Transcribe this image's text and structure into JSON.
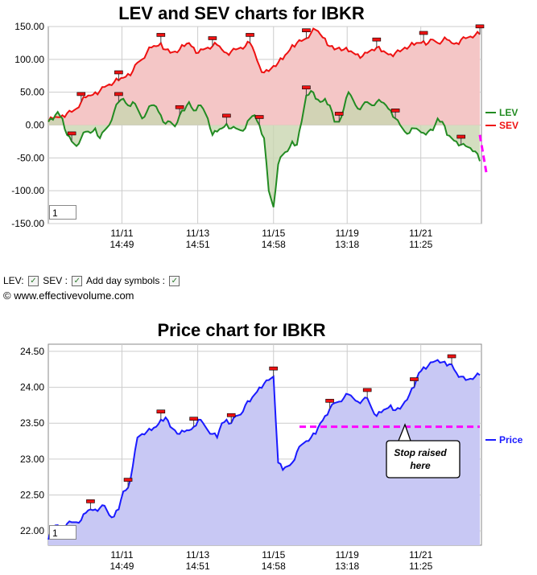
{
  "chart_data": [
    {
      "type": "line",
      "title": "LEV and SEV charts for IBKR",
      "yticks": [
        "150.00",
        "100.00",
        "50.00",
        "0.00",
        "-50.00",
        "-100.00",
        "-150.00"
      ],
      "ylim": [
        -150,
        150
      ],
      "xticks": [
        {
          "date": "11/11",
          "time": "14:49"
        },
        {
          "date": "11/13",
          "time": "14:51"
        },
        {
          "date": "11/15",
          "time": "14:58"
        },
        {
          "date": "11/19",
          "time": "13:18"
        },
        {
          "date": "11/21",
          "time": "11:25"
        }
      ],
      "legend_position": "right",
      "grid": true,
      "zoom_value": "1",
      "colors": {
        "lev": "#228b22",
        "sev": "#ee1111",
        "trend": "#ff00ff"
      },
      "series": [
        {
          "name": "LEV",
          "values": [
            5,
            8,
            20,
            10,
            -15,
            -25,
            -32,
            -20,
            -10,
            -12,
            -5,
            -20,
            -8,
            0,
            20,
            35,
            40,
            30,
            35,
            25,
            10,
            20,
            30,
            28,
            15,
            2,
            5,
            -2,
            15,
            22,
            35,
            22,
            30,
            25,
            10,
            -15,
            -10,
            -5,
            2,
            -5,
            -5,
            -8,
            -5,
            10,
            15,
            0,
            -20,
            -100,
            -125,
            -60,
            -45,
            -40,
            -25,
            -30,
            5,
            45,
            52,
            40,
            35,
            40,
            30,
            5,
            5,
            25,
            50,
            38,
            25,
            30,
            35,
            30,
            35,
            35,
            30,
            22,
            10,
            0,
            -10,
            -12,
            -5,
            -8,
            -12,
            -10,
            -8,
            10,
            5,
            -15,
            -20,
            -25,
            -30,
            -32,
            -35,
            -40,
            -55
          ]
        },
        {
          "name": "SEV",
          "values": [
            5,
            10,
            12,
            15,
            18,
            20,
            25,
            35,
            42,
            45,
            50,
            52,
            58,
            62,
            65,
            68,
            72,
            78,
            82,
            95,
            100,
            110,
            118,
            120,
            125,
            115,
            110,
            112,
            115,
            120,
            125,
            118,
            110,
            115,
            118,
            120,
            122,
            115,
            110,
            112,
            115,
            118,
            120,
            125,
            110,
            90,
            80,
            82,
            90,
            95,
            100,
            110,
            122,
            125,
            128,
            132,
            140,
            145,
            138,
            132,
            120,
            115,
            118,
            115,
            112,
            110,
            108,
            105,
            110,
            115,
            118,
            112,
            110,
            108,
            110,
            112,
            118,
            120,
            122,
            125,
            128,
            125,
            130,
            125,
            128,
            130,
            125,
            125,
            130,
            132,
            135,
            137,
            138
          ]
        }
      ],
      "annotation": {
        "label": "trend-line",
        "x_from": 92,
        "y_from": -15,
        "x_to": 102,
        "y_to": -72
      }
    },
    {
      "type": "area",
      "title": "Price chart for IBKR",
      "yticks": [
        "24.50",
        "24.00",
        "23.50",
        "23.00",
        "22.50",
        "22.00"
      ],
      "ylim": [
        21.8,
        24.6
      ],
      "xticks": [
        {
          "date": "11/11",
          "time": "14:49"
        },
        {
          "date": "11/13",
          "time": "14:51"
        },
        {
          "date": "11/15",
          "time": "14:58"
        },
        {
          "date": "11/19",
          "time": "13:18"
        },
        {
          "date": "11/21",
          "time": "11:25"
        }
      ],
      "grid": true,
      "zoom_value": "1",
      "colors": {
        "price": "#1a1aff",
        "fill": "#c8c8f4"
      },
      "series": [
        {
          "name": "Price",
          "values": [
            21.88,
            22.05,
            22.08,
            22.05,
            22.1,
            22.12,
            22.12,
            22.15,
            22.25,
            22.3,
            22.3,
            22.32,
            22.35,
            22.22,
            22.2,
            22.3,
            22.55,
            22.6,
            22.9,
            23.3,
            23.35,
            23.38,
            23.4,
            23.45,
            23.55,
            23.58,
            23.45,
            23.4,
            23.35,
            23.38,
            23.4,
            23.45,
            23.55,
            23.5,
            23.4,
            23.35,
            23.3,
            23.5,
            23.55,
            23.5,
            23.6,
            23.62,
            23.75,
            23.8,
            23.9,
            24.0,
            24.05,
            24.1,
            24.15,
            22.95,
            22.85,
            22.9,
            22.95,
            23.1,
            23.2,
            23.25,
            23.3,
            23.35,
            23.5,
            23.6,
            23.7,
            23.78,
            23.8,
            23.85,
            23.9,
            23.85,
            23.8,
            23.82,
            23.85,
            23.7,
            23.6,
            23.65,
            23.7,
            23.75,
            23.68,
            23.7,
            23.8,
            23.9,
            24.0,
            24.2,
            24.28,
            24.3,
            24.35,
            24.38,
            24.35,
            24.3,
            24.32,
            24.2,
            24.15,
            24.1,
            24.12,
            24.15,
            24.17
          ]
        }
      ],
      "stop_line": {
        "value": 23.45,
        "x_from": 0.58
      },
      "callout": {
        "line1": "Stop raised",
        "line2": "here"
      }
    }
  ],
  "controls": {
    "lev_label": "LEV:",
    "sev_label": "SEV :",
    "day_label": "Add day symbols :",
    "check": "✓"
  },
  "credit": "© www.effectivevolume.com"
}
